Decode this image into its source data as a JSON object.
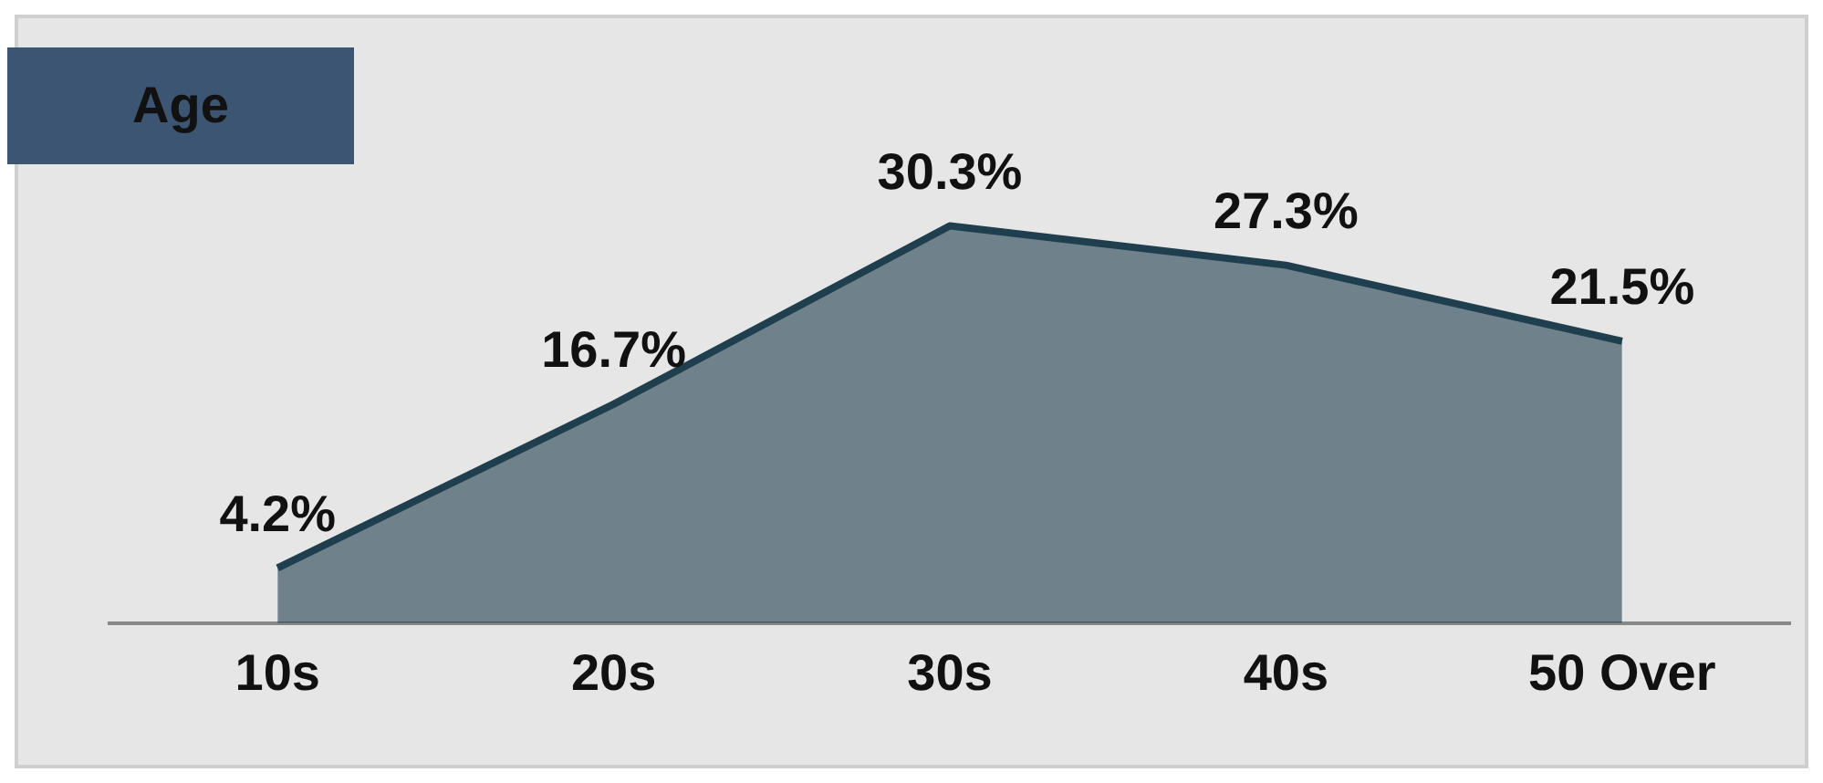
{
  "chart_data": {
    "type": "area",
    "title": "Age",
    "categories": [
      "10s",
      "20s",
      "30s",
      "40s",
      "50 Over"
    ],
    "series": [
      {
        "color": "#1f3f4f",
        "values": [
          4.2,
          16.7,
          30.3,
          27.3,
          21.5
        ],
        "value_labels": [
          "4.2%",
          "16.7%",
          "30.3%",
          "27.3%",
          "21.5%"
        ]
      }
    ],
    "grid": false,
    "legend": false
  }
}
